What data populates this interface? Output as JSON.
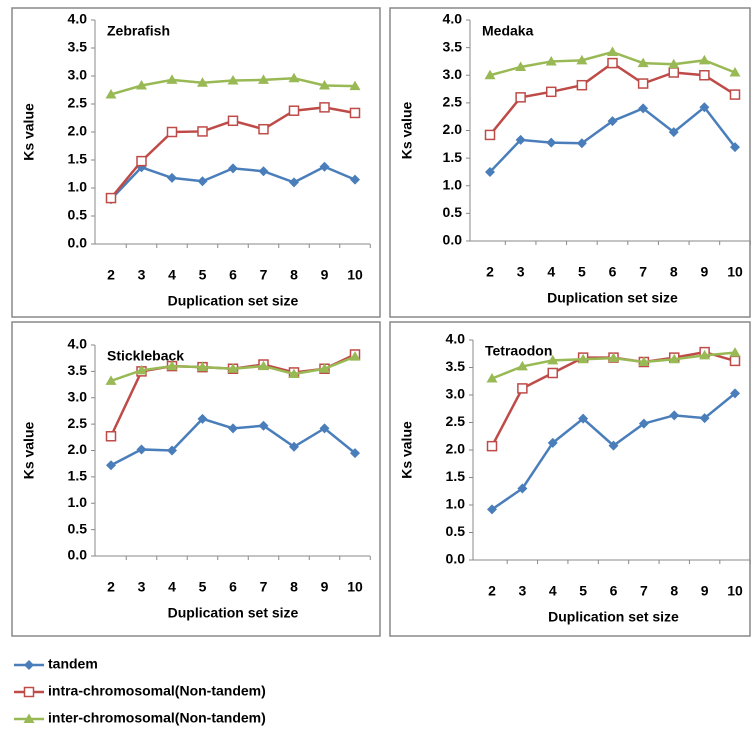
{
  "chart_data": [
    {
      "type": "line",
      "title": "Zebrafish",
      "ylabel": "Ks value",
      "xlabel": "Duplication set size",
      "categories": [
        "2",
        "3",
        "4",
        "5",
        "6",
        "7",
        "8",
        "9",
        "10"
      ],
      "ylim": [
        0,
        4
      ],
      "yticks": [
        {
          "value": 0,
          "label": "0.0"
        },
        0.5,
        {
          "value": 1,
          "label": "1.0"
        },
        1.5,
        {
          "value": 2,
          "label": "2.0"
        },
        2.5,
        {
          "value": 3,
          "label": "3.0"
        },
        3.5,
        {
          "value": 4,
          "label": "4.0"
        }
      ],
      "series": [
        {
          "name": "tandem",
          "color": "#4a7ebb",
          "marker": "diamond",
          "values": [
            0.8,
            1.37,
            1.18,
            1.12,
            1.35,
            1.3,
            1.1,
            1.38,
            1.15
          ]
        },
        {
          "name": "intra-chromosomal(Non-tandem)",
          "color": "#be4b48",
          "marker": "square",
          "values": [
            0.82,
            1.48,
            2.0,
            2.01,
            2.2,
            2.05,
            2.38,
            2.44,
            2.34
          ]
        },
        {
          "name": "inter-chromosomal(Non-tandem)",
          "color": "#98b954",
          "marker": "triangle",
          "values": [
            2.67,
            2.83,
            2.93,
            2.88,
            2.92,
            2.93,
            2.96,
            2.83,
            2.82
          ]
        }
      ]
    },
    {
      "type": "line",
      "title": "Medaka",
      "ylabel": "Ks value",
      "xlabel": "Duplication set size",
      "categories": [
        "2",
        "3",
        "4",
        "5",
        "6",
        "7",
        "8",
        "9",
        "10"
      ],
      "ylim": [
        0,
        4
      ],
      "yticks": [
        {
          "value": 0,
          "label": "0.0"
        },
        0.5,
        {
          "value": 1,
          "label": "1.0"
        },
        1.5,
        {
          "value": 2,
          "label": "2.0"
        },
        2.5,
        {
          "value": 3,
          "label": "3.0"
        },
        3.5,
        {
          "value": 4,
          "label": "4.0"
        }
      ],
      "series": [
        {
          "color": "#4a7ebb",
          "marker": "diamond",
          "values": [
            1.25,
            1.83,
            1.78,
            1.77,
            2.17,
            2.4,
            1.97,
            2.42,
            1.7
          ]
        },
        {
          "color": "#be4b48",
          "marker": "square",
          "values": [
            1.92,
            2.6,
            2.7,
            2.82,
            3.22,
            2.85,
            3.05,
            3.0,
            2.65
          ]
        },
        {
          "color": "#98b954",
          "marker": "triangle",
          "values": [
            3.0,
            3.15,
            3.25,
            3.27,
            3.42,
            3.22,
            3.2,
            3.27,
            3.05
          ]
        }
      ]
    },
    {
      "type": "line",
      "title": "Stickleback",
      "ylabel": "Ks value",
      "xlabel": "Duplication set size",
      "categories": [
        "2",
        "3",
        "4",
        "5",
        "6",
        "7",
        "8",
        "9",
        "10"
      ],
      "ylim": [
        0,
        4
      ],
      "yticks": [
        {
          "value": 0,
          "label": "0.0"
        },
        0.5,
        {
          "value": 1,
          "label": "1.0"
        },
        1.5,
        {
          "value": 2,
          "label": "2.0"
        },
        2.5,
        {
          "value": 3,
          "label": "3.0"
        },
        3.5,
        {
          "value": 4,
          "label": "4.0"
        }
      ],
      "series": [
        {
          "color": "#4a7ebb",
          "marker": "diamond",
          "values": [
            1.72,
            2.02,
            2.0,
            2.6,
            2.42,
            2.47,
            2.07,
            2.42,
            1.95
          ]
        },
        {
          "color": "#be4b48",
          "marker": "square",
          "values": [
            2.27,
            3.5,
            3.6,
            3.58,
            3.55,
            3.63,
            3.48,
            3.55,
            3.82
          ]
        },
        {
          "color": "#98b954",
          "marker": "triangle",
          "values": [
            3.32,
            3.52,
            3.6,
            3.58,
            3.55,
            3.6,
            3.45,
            3.55,
            3.78
          ]
        }
      ]
    },
    {
      "type": "line",
      "title": "Tetraodon",
      "ylabel": "Ks value",
      "xlabel": "Duplication set size",
      "categories": [
        "2",
        "3",
        "4",
        "5",
        "6",
        "7",
        "8",
        "9",
        "10"
      ],
      "ylim": [
        0,
        4
      ],
      "yticks": [
        {
          "value": 0,
          "label": "0.0"
        },
        0.5,
        {
          "value": 1,
          "label": "1.0"
        },
        1.5,
        {
          "value": 2,
          "label": "2.0"
        },
        2.5,
        {
          "value": 3,
          "label": "3.0"
        },
        3.5,
        {
          "value": 4,
          "label": "4.0"
        }
      ],
      "series": [
        {
          "color": "#4a7ebb",
          "marker": "diamond",
          "values": [
            0.92,
            1.3,
            2.13,
            2.57,
            2.08,
            2.48,
            2.63,
            2.58,
            3.03
          ]
        },
        {
          "color": "#be4b48",
          "marker": "square",
          "values": [
            2.07,
            3.12,
            3.4,
            3.68,
            3.68,
            3.6,
            3.68,
            3.78,
            3.62
          ]
        },
        {
          "color": "#98b954",
          "marker": "triangle",
          "values": [
            3.3,
            3.52,
            3.63,
            3.65,
            3.67,
            3.6,
            3.65,
            3.72,
            3.77
          ]
        }
      ]
    }
  ]
}
